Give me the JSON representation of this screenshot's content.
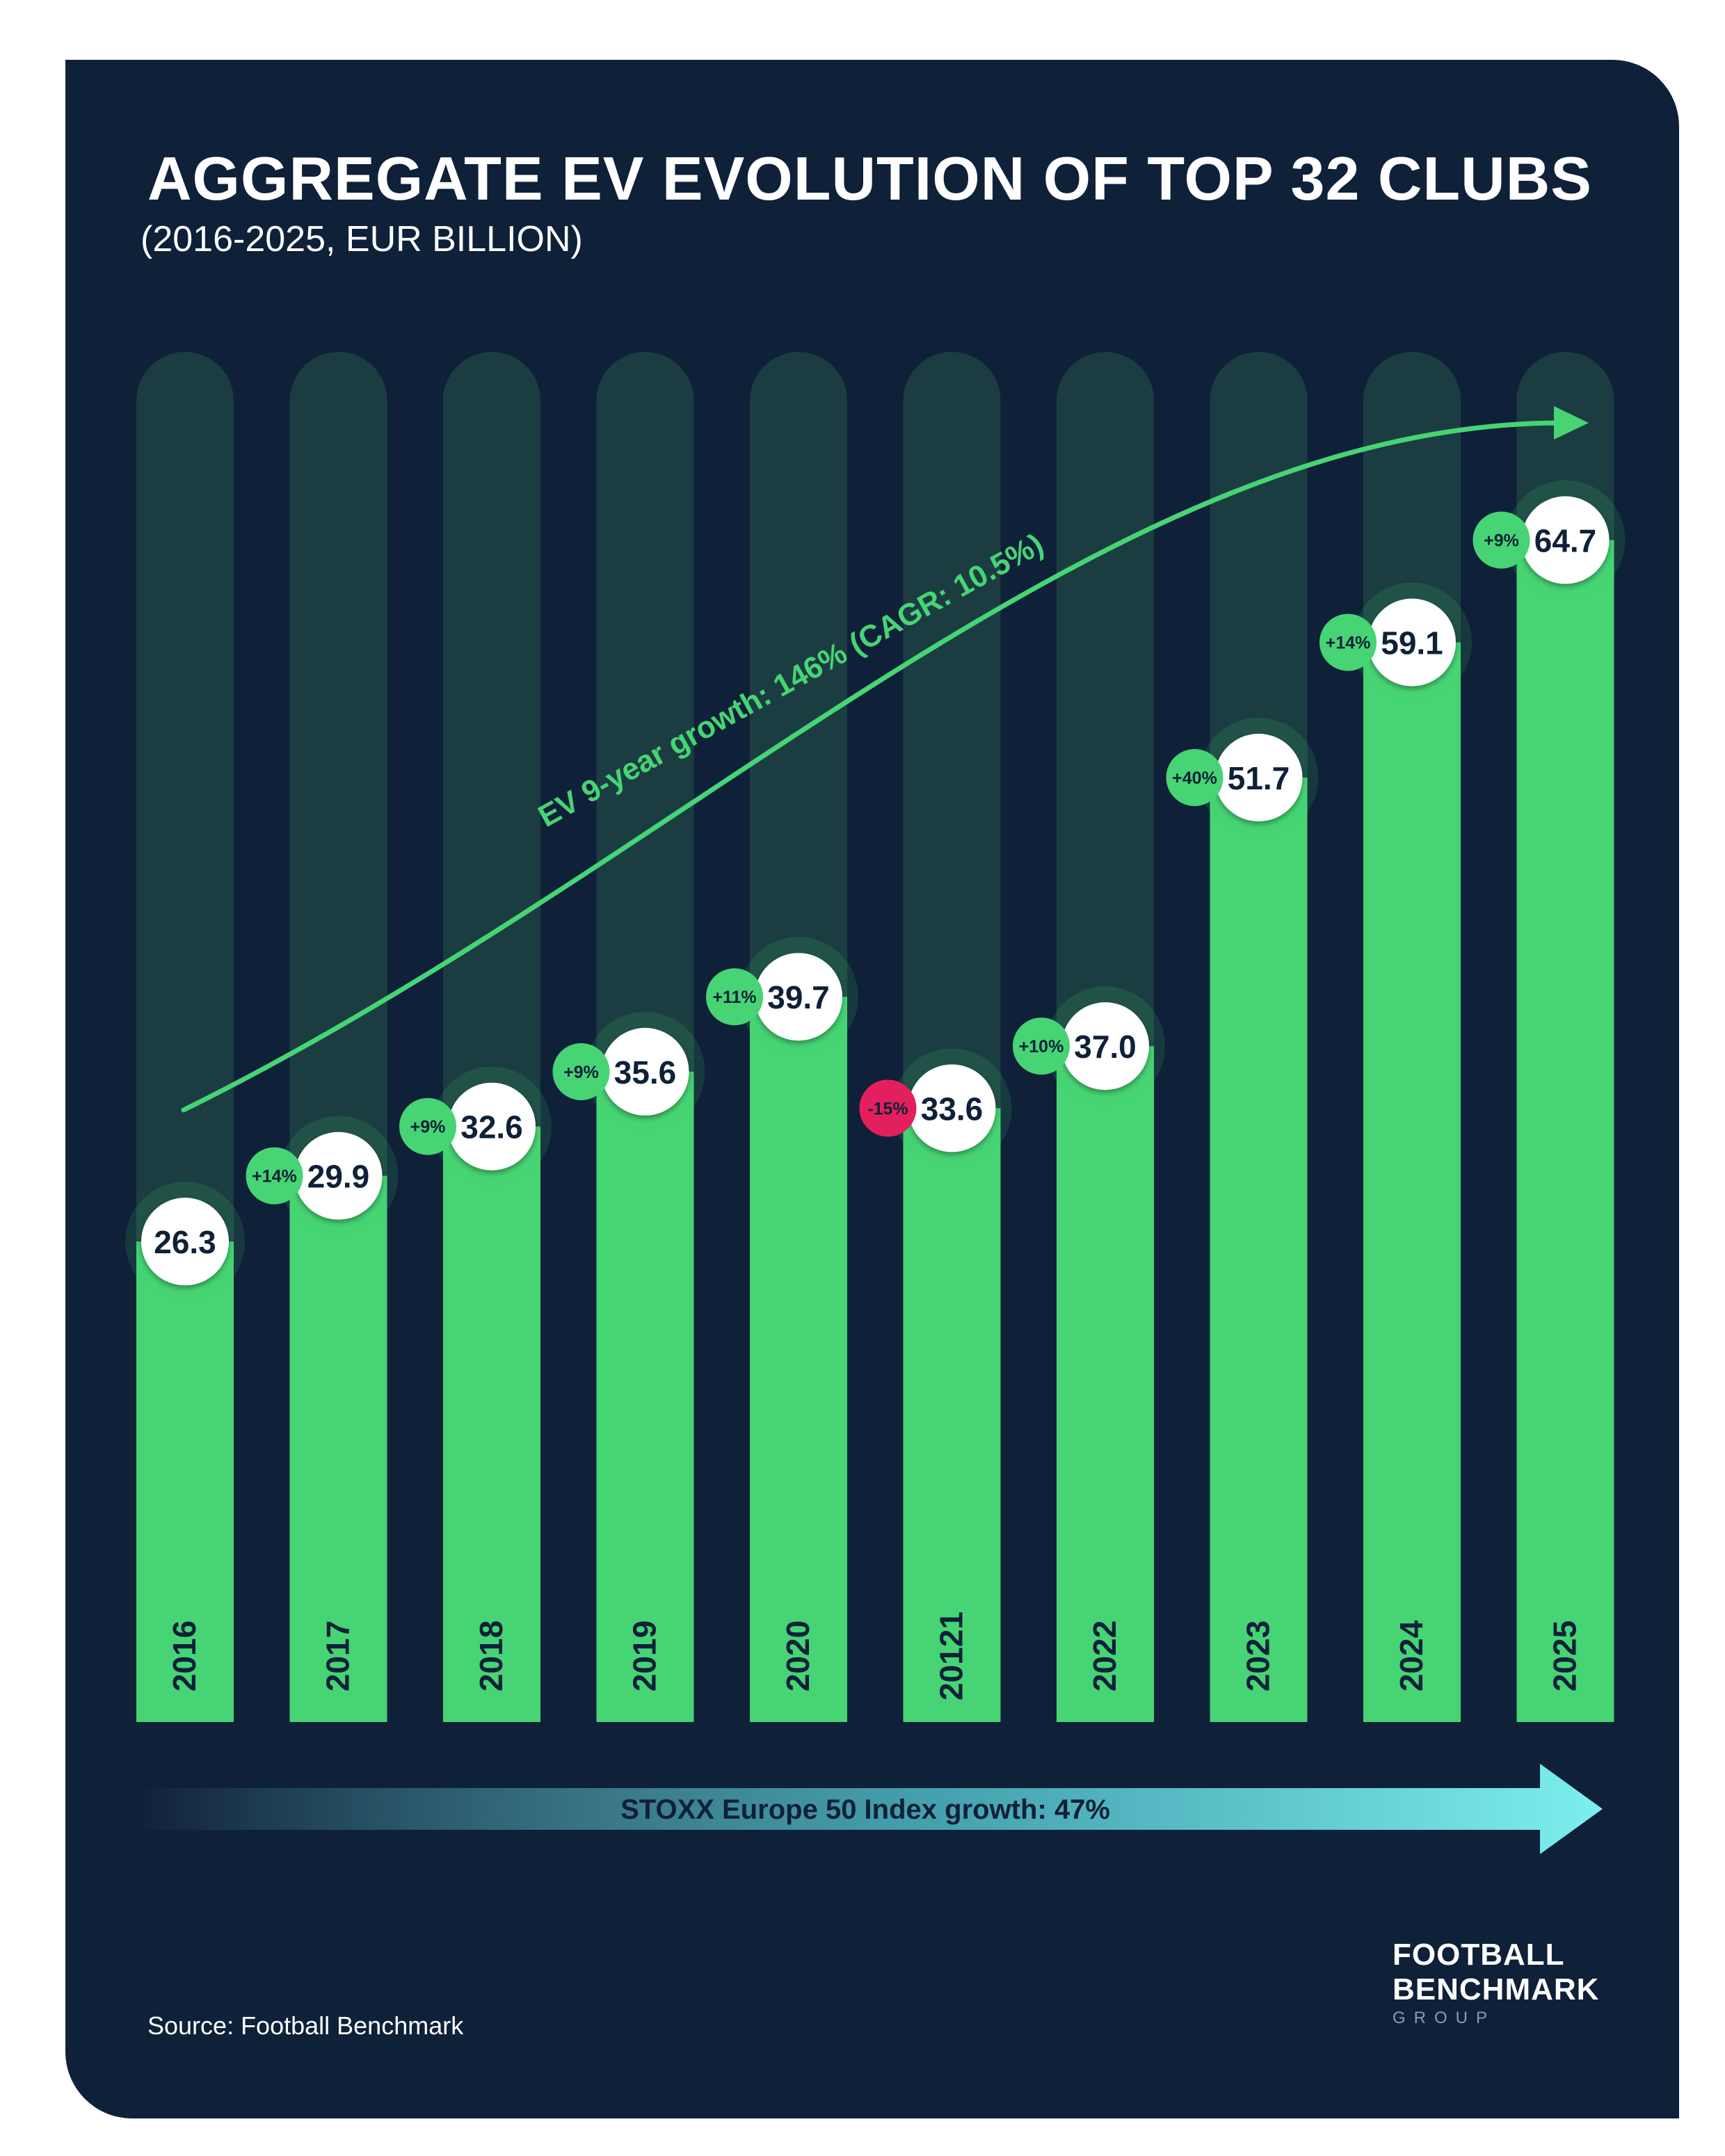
{
  "colors": {
    "background": "#0f2039",
    "bar": "#46d474",
    "bar_track": "#1d4344",
    "growth_arrow": "#46d474",
    "negative_badge": "#e41f5d",
    "index_arrow": "#7defef",
    "label_text": "#0f2039"
  },
  "logo": {
    "line1": "FOOTBALL",
    "line2": "BENCHMARK",
    "line3": "GROUP"
  },
  "source": "Source: Football Benchmark",
  "chart_data": {
    "type": "bar",
    "title": "AGGREGATE EV EVOLUTION OF TOP 32 CLUBS",
    "subtitle": "(2016-2025, EUR BILLION)",
    "categories": [
      "2016",
      "2017",
      "2018",
      "2019",
      "2020",
      "20121",
      "2022",
      "2023",
      "2024",
      "2025"
    ],
    "values": [
      26.3,
      29.9,
      32.6,
      35.6,
      39.7,
      33.6,
      37.0,
      51.7,
      59.1,
      64.7
    ],
    "value_labels": [
      "26.3",
      "29.9",
      "32.6",
      "35.6",
      "39.7",
      "33.6",
      "37.0",
      "51.7",
      "59.1",
      "64.7"
    ],
    "yoy_change": [
      null,
      "+14%",
      "+9%",
      "+9%",
      "+11%",
      "-15%",
      "+10%",
      "+40%",
      "+14%",
      "+9%"
    ],
    "ylim": [
      0,
      75
    ],
    "annotations": {
      "growth_arrow": "EV 9-year growth: 146% (CAGR: 10.5%)",
      "index_arrow": "STOXX Europe 50 Index growth: 47%"
    }
  }
}
